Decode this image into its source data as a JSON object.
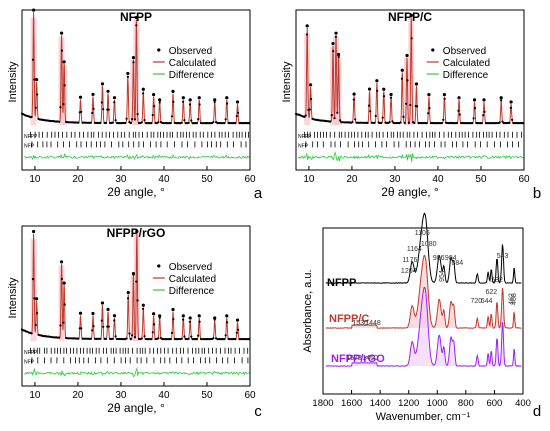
{
  "chart_data": [
    {
      "type": "line",
      "panel_letter": "a",
      "title": "NFPP",
      "xlabel": "2θ angle, °",
      "ylabel": "Intensity",
      "xlim": [
        7,
        60
      ],
      "xticks": [
        "10",
        "20",
        "30",
        "40",
        "50",
        "60"
      ],
      "phase_labels": [
        "NFPP",
        "NFP"
      ],
      "legend": {
        "position": "top-right",
        "entries": [
          "Observed",
          "Calculated",
          "Difference"
        ]
      },
      "series_colors": {
        "Observed": "#000000",
        "Calculated": "#c0392b",
        "Difference": "#2ecc40"
      },
      "peaks": [
        [
          9.7,
          1.0
        ],
        [
          10.4,
          0.35
        ],
        [
          16.2,
          0.82
        ],
        [
          16.8,
          0.55
        ],
        [
          20.6,
          0.22
        ],
        [
          23.5,
          0.25
        ],
        [
          25.7,
          0.35
        ],
        [
          27.0,
          0.28
        ],
        [
          28.5,
          0.22
        ],
        [
          31.6,
          0.45
        ],
        [
          32.9,
          0.6
        ],
        [
          33.6,
          0.98
        ],
        [
          35.2,
          0.3
        ],
        [
          37.6,
          0.25
        ],
        [
          39.0,
          0.2
        ],
        [
          42.1,
          0.28
        ],
        [
          44.5,
          0.22
        ],
        [
          46.1,
          0.2
        ],
        [
          48.2,
          0.22
        ],
        [
          51.8,
          0.2
        ],
        [
          54.6,
          0.22
        ],
        [
          57.1,
          0.18
        ]
      ]
    },
    {
      "type": "line",
      "panel_letter": "b",
      "title": "NFPP/C",
      "xlabel": "2θ angle, °",
      "ylabel": "Intensity",
      "xlim": [
        7,
        60
      ],
      "xticks": [
        "10",
        "20",
        "30",
        "40",
        "50",
        "60"
      ],
      "phase_labels": [
        "NFPP",
        "NFP"
      ],
      "legend": {
        "position": "top-right",
        "entries": [
          "Observed",
          "Calculated",
          "Difference"
        ]
      },
      "series_colors": {
        "Observed": "#000000",
        "Calculated": "#c0392b",
        "Difference": "#2ecc40"
      },
      "peaks": [
        [
          9.6,
          0.85
        ],
        [
          10.4,
          0.3
        ],
        [
          15.6,
          0.72
        ],
        [
          16.3,
          0.82
        ],
        [
          16.9,
          0.62
        ],
        [
          20.5,
          0.25
        ],
        [
          24.1,
          0.3
        ],
        [
          25.8,
          0.38
        ],
        [
          27.4,
          0.3
        ],
        [
          29.1,
          0.25
        ],
        [
          31.7,
          0.48
        ],
        [
          32.8,
          0.62
        ],
        [
          33.8,
          1.0
        ],
        [
          35.0,
          0.35
        ],
        [
          37.9,
          0.25
        ],
        [
          41.5,
          0.25
        ],
        [
          44.9,
          0.22
        ],
        [
          48.5,
          0.2
        ],
        [
          50.7,
          0.2
        ],
        [
          54.7,
          0.22
        ],
        [
          57.0,
          0.18
        ]
      ]
    },
    {
      "type": "line",
      "panel_letter": "c",
      "title": "NFPP/rGO",
      "xlabel": "2θ angle, °",
      "ylabel": "Intensity",
      "xlim": [
        7,
        60
      ],
      "xticks": [
        "10",
        "20",
        "30",
        "40",
        "50",
        "60"
      ],
      "phase_labels": [
        "NFPP",
        "NFP"
      ],
      "legend": {
        "position": "top-right",
        "entries": [
          "Observed",
          "Calculated",
          "Difference"
        ]
      },
      "series_colors": {
        "Observed": "#000000",
        "Calculated": "#c0392b",
        "Difference": "#2ecc40"
      },
      "peaks": [
        [
          9.7,
          0.95
        ],
        [
          10.4,
          0.32
        ],
        [
          16.2,
          0.7
        ],
        [
          16.8,
          0.5
        ],
        [
          20.6,
          0.22
        ],
        [
          23.5,
          0.22
        ],
        [
          25.7,
          0.32
        ],
        [
          27.0,
          0.26
        ],
        [
          28.5,
          0.2
        ],
        [
          31.7,
          0.42
        ],
        [
          32.9,
          0.6
        ],
        [
          33.7,
          1.0
        ],
        [
          35.2,
          0.3
        ],
        [
          37.6,
          0.22
        ],
        [
          39.0,
          0.2
        ],
        [
          42.1,
          0.26
        ],
        [
          44.5,
          0.2
        ],
        [
          46.1,
          0.18
        ],
        [
          48.2,
          0.2
        ],
        [
          51.8,
          0.18
        ],
        [
          54.6,
          0.2
        ],
        [
          57.1,
          0.16
        ]
      ]
    },
    {
      "type": "line",
      "panel_letter": "d",
      "title": "",
      "xlabel": "Wavenumber, cm⁻¹",
      "ylabel": "Absorbance, a.u.",
      "xlim": [
        1800,
        400
      ],
      "xticks": [
        "1800",
        "1600",
        "1400",
        "1200",
        "1000",
        "800",
        "600",
        "400"
      ],
      "series": [
        {
          "name": "NFPP",
          "color": "#000000"
        },
        {
          "name": "NFPP/C",
          "color": "#c0392b"
        },
        {
          "name": "NFPP/rGO",
          "color": "#a020f0"
        }
      ],
      "band_labels": [
        {
          "text": "1105",
          "x": 1105
        },
        {
          "text": "1080",
          "x": 1080
        },
        {
          "text": "1164",
          "x": 1164
        },
        {
          "text": "1176",
          "x": 1176
        },
        {
          "text": "1204",
          "x": 1204
        },
        {
          "text": "986",
          "x": 986
        },
        {
          "text": "904",
          "x": 904
        },
        {
          "text": "884",
          "x": 884
        },
        {
          "text": "954",
          "x": 954
        },
        {
          "text": "720",
          "x": 720
        },
        {
          "text": "644",
          "x": 644
        },
        {
          "text": "622",
          "x": 622
        },
        {
          "text": "582",
          "x": 582
        },
        {
          "text": "543",
          "x": 543
        },
        {
          "text": "462",
          "x": 462
        },
        {
          "text": "468",
          "x": 468
        },
        {
          "text": "1530",
          "x": 1530
        },
        {
          "text": "1448",
          "x": 1448
        },
        {
          "text": "1573",
          "x": 1573
        },
        {
          "text": "1460",
          "x": 1460
        }
      ]
    }
  ]
}
